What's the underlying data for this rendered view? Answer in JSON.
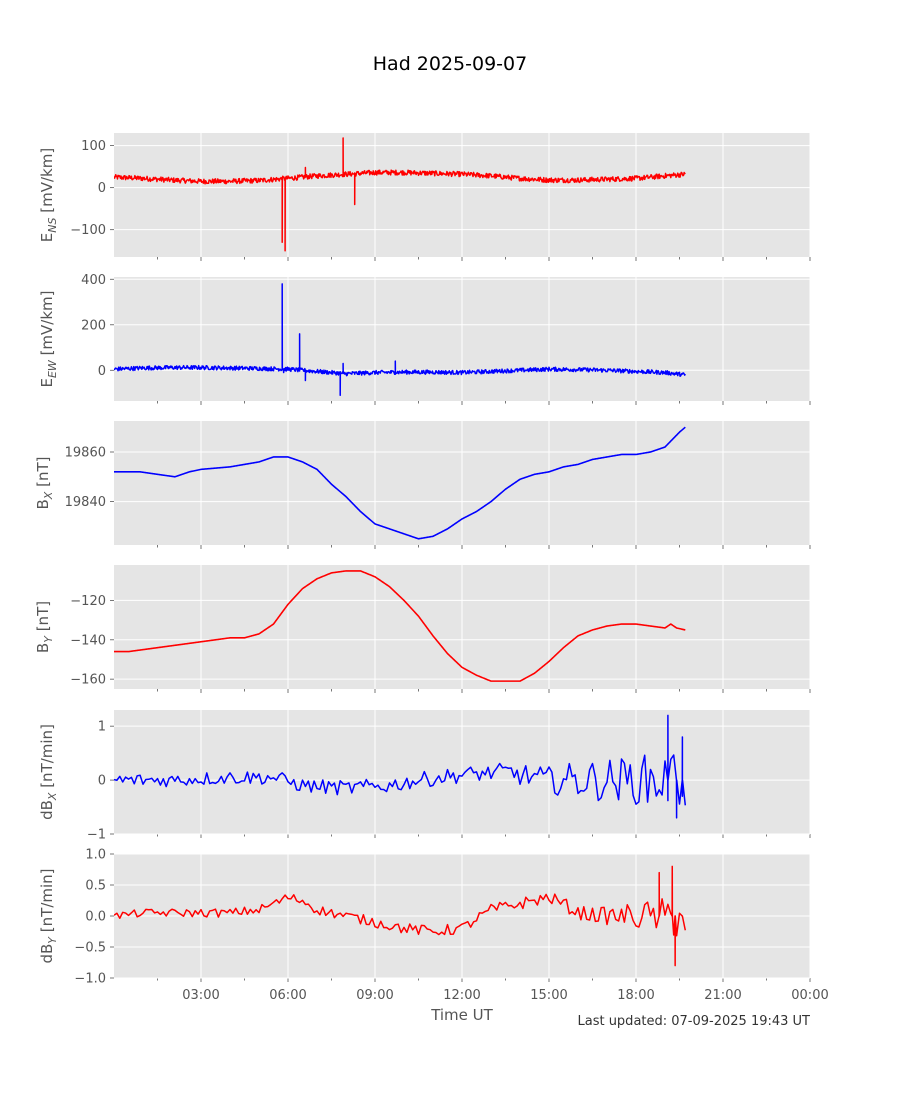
{
  "title": "Had 2025-09-07",
  "footer": "Last updated: 07-09-2025 19:43 UT",
  "xlabel": "Time UT",
  "x_tick_labels": [
    "03:00",
    "06:00",
    "09:00",
    "12:00",
    "15:00",
    "18:00",
    "21:00",
    "00:00"
  ],
  "colors": {
    "plot_background": "#e5e5e5",
    "grid": "#ffffff",
    "red": "#ff0000",
    "blue": "#0000ff",
    "tick_text": "#555555"
  },
  "chart_data": [
    {
      "type": "line",
      "ylabel": "E_NS [mV/km]",
      "ylabel_main": "E",
      "ylabel_sub": "NS",
      "ylabel_rest": " [mV/km]",
      "color": "#ff0000",
      "xlim": [
        0,
        24
      ],
      "ylim": [
        -165,
        130
      ],
      "yticks": [
        100,
        0,
        -100
      ],
      "ytick_labels": [
        "100",
        "0",
        "−100"
      ],
      "noise": 6,
      "x": [
        0,
        1,
        2,
        3,
        4,
        5,
        6,
        7,
        8,
        9,
        10,
        11,
        12,
        13,
        14,
        15,
        16,
        17,
        18,
        19,
        19.7
      ],
      "y": [
        25,
        22,
        18,
        15,
        15,
        17,
        22,
        28,
        32,
        36,
        36,
        34,
        32,
        28,
        22,
        18,
        18,
        20,
        22,
        28,
        32
      ],
      "spikes": [
        [
          5.8,
          -130
        ],
        [
          5.9,
          -150
        ],
        [
          6.6,
          48
        ],
        [
          7.9,
          118
        ],
        [
          8.3,
          -40
        ]
      ]
    },
    {
      "type": "line",
      "ylabel": "E_EW [mV/km]",
      "ylabel_main": "E",
      "ylabel_sub": "EW",
      "ylabel_rest": " [mV/km]",
      "color": "#0000ff",
      "xlim": [
        0,
        24
      ],
      "ylim": [
        -135,
        410
      ],
      "yticks": [
        400,
        200,
        0
      ],
      "ytick_labels": [
        "400",
        "200",
        "0"
      ],
      "noise": 9,
      "x": [
        0,
        1,
        2,
        3,
        4,
        5,
        6,
        7,
        8,
        9,
        10,
        11,
        12,
        13,
        14,
        15,
        16,
        17,
        18,
        19,
        19.7
      ],
      "y": [
        5,
        10,
        12,
        12,
        10,
        8,
        5,
        -5,
        -15,
        -10,
        -8,
        -8,
        -10,
        -5,
        0,
        5,
        3,
        0,
        -5,
        -10,
        -20
      ],
      "spikes": [
        [
          5.8,
          380
        ],
        [
          5.85,
          -10
        ],
        [
          6.4,
          160
        ],
        [
          6.6,
          -45
        ],
        [
          7.8,
          -110
        ],
        [
          7.9,
          30
        ],
        [
          9.7,
          40
        ]
      ]
    },
    {
      "type": "line",
      "ylabel": "B_X [nT]",
      "ylabel_main": "B",
      "ylabel_sub": "X",
      "ylabel_rest": " [nT]",
      "color": "#0000ff",
      "xlim": [
        0,
        24
      ],
      "ylim": [
        1822.5,
        1872.5
      ],
      "ylim_note": "values are B_X minus 18000",
      "yticks": [
        1860,
        1840
      ],
      "ytick_labels": [
        "19860",
        "19840"
      ],
      "noise": 0,
      "x": [
        0,
        0.9,
        1.5,
        2.1,
        2.6,
        3.0,
        4.0,
        5.0,
        5.5,
        6.0,
        6.5,
        7.0,
        7.5,
        8.0,
        8.5,
        9.0,
        9.5,
        10.0,
        10.5,
        11.0,
        11.5,
        12.0,
        12.5,
        13.0,
        13.5,
        14.0,
        14.5,
        15.0,
        15.5,
        16.0,
        16.5,
        17.0,
        17.5,
        18.0,
        18.5,
        19.0,
        19.5,
        19.7
      ],
      "y": [
        1852,
        1852,
        1851,
        1850,
        1852,
        1853,
        1854,
        1856,
        1858,
        1858,
        1856,
        1853,
        1847,
        1842,
        1836,
        1831,
        1829,
        1827,
        1825,
        1826,
        1829,
        1833,
        1836,
        1840,
        1845,
        1849,
        1851,
        1852,
        1854,
        1855,
        1857,
        1858,
        1859,
        1859,
        1860,
        1862,
        1868,
        1870
      ]
    },
    {
      "type": "line",
      "ylabel": "B_Y [nT]",
      "ylabel_main": "B",
      "ylabel_sub": "Y",
      "ylabel_rest": " [nT]",
      "color": "#ff0000",
      "xlim": [
        0,
        24
      ],
      "ylim": [
        -165,
        -102
      ],
      "yticks": [
        -120,
        -140,
        -160
      ],
      "ytick_labels": [
        "−120",
        "−140",
        "−160"
      ],
      "noise": 0,
      "x": [
        0,
        0.5,
        1.0,
        1.5,
        2.0,
        2.5,
        3.0,
        3.5,
        4.0,
        4.5,
        5.0,
        5.5,
        6.0,
        6.5,
        7.0,
        7.5,
        8.0,
        8.5,
        9.0,
        9.5,
        10.0,
        10.5,
        11.0,
        11.5,
        12.0,
        12.5,
        13.0,
        13.5,
        14.0,
        14.5,
        15.0,
        15.5,
        16.0,
        16.5,
        17.0,
        17.5,
        18.0,
        18.5,
        19.0,
        19.2,
        19.4,
        19.7
      ],
      "y": [
        -146,
        -146,
        -145,
        -144,
        -143,
        -142,
        -141,
        -140,
        -139,
        -139,
        -137,
        -132,
        -122,
        -114,
        -109,
        -106,
        -105,
        -105,
        -108,
        -113,
        -120,
        -128,
        -138,
        -147,
        -154,
        -158,
        -161,
        -161,
        -161,
        -157,
        -151,
        -144,
        -138,
        -135,
        -133,
        -132,
        -132,
        -133,
        -134,
        -132,
        -134,
        -135
      ]
    },
    {
      "type": "line",
      "ylabel": "dB_X [nT/min]",
      "ylabel_main": "dB",
      "ylabel_sub": "X",
      "ylabel_rest": " [nT/min]",
      "color": "#0000ff",
      "xlim": [
        0,
        24
      ],
      "ylim": [
        -1,
        1.3
      ],
      "yticks": [
        1,
        0,
        -1
      ],
      "ytick_labels": [
        "1",
        "0",
        "−1"
      ],
      "noise": 0.12,
      "step": 0.1,
      "x": [
        0,
        2,
        4,
        5.5,
        6.5,
        8,
        9.5,
        10.5,
        12,
        13.5,
        15,
        16,
        17,
        18,
        19,
        19.7
      ],
      "y": [
        0,
        0,
        0.05,
        0.05,
        -0.1,
        -0.15,
        -0.1,
        0,
        0.1,
        0.15,
        0,
        0,
        0,
        0,
        0,
        0
      ],
      "noise_growth": [
        [
          0,
          0.12
        ],
        [
          13,
          0.15
        ],
        [
          15,
          0.25
        ],
        [
          16,
          0.35
        ],
        [
          18,
          0.45
        ],
        [
          19.7,
          0.6
        ]
      ],
      "spikes": [
        [
          19.1,
          1.2
        ],
        [
          19.4,
          -0.7
        ],
        [
          19.6,
          0.8
        ]
      ]
    },
    {
      "type": "line",
      "ylabel": "dB_Y [nT/min]",
      "ylabel_main": "dB",
      "ylabel_sub": "Y",
      "ylabel_rest": " [nT/min]",
      "color": "#ff0000",
      "xlim": [
        0,
        24
      ],
      "ylim": [
        -1,
        1
      ],
      "yticks": [
        1.0,
        0.5,
        0.0,
        -0.5,
        -1.0
      ],
      "ytick_labels": [
        "1.0",
        "0.5",
        "0.0",
        "−0.5",
        "−1.0"
      ],
      "noise": 0.06,
      "step": 0.1,
      "x": [
        0,
        1,
        2,
        3,
        4,
        5,
        5.5,
        6,
        6.5,
        7,
        8,
        9,
        10,
        11,
        12,
        13,
        14,
        14.5,
        15,
        15.5,
        16,
        17,
        18,
        19,
        19.7
      ],
      "y": [
        0,
        0.05,
        0.05,
        0.05,
        0.05,
        0.1,
        0.2,
        0.3,
        0.25,
        0.1,
        0,
        -0.1,
        -0.2,
        -0.25,
        -0.2,
        0.1,
        0.2,
        0.25,
        0.3,
        0.2,
        0.05,
        0,
        0,
        0,
        0
      ],
      "noise_growth": [
        [
          0,
          0.06
        ],
        [
          15.5,
          0.1
        ],
        [
          17,
          0.14
        ],
        [
          19,
          0.3
        ],
        [
          19.7,
          0.45
        ]
      ],
      "spikes": [
        [
          18.8,
          0.7
        ],
        [
          19.25,
          0.8
        ],
        [
          19.35,
          -0.8
        ]
      ]
    }
  ]
}
